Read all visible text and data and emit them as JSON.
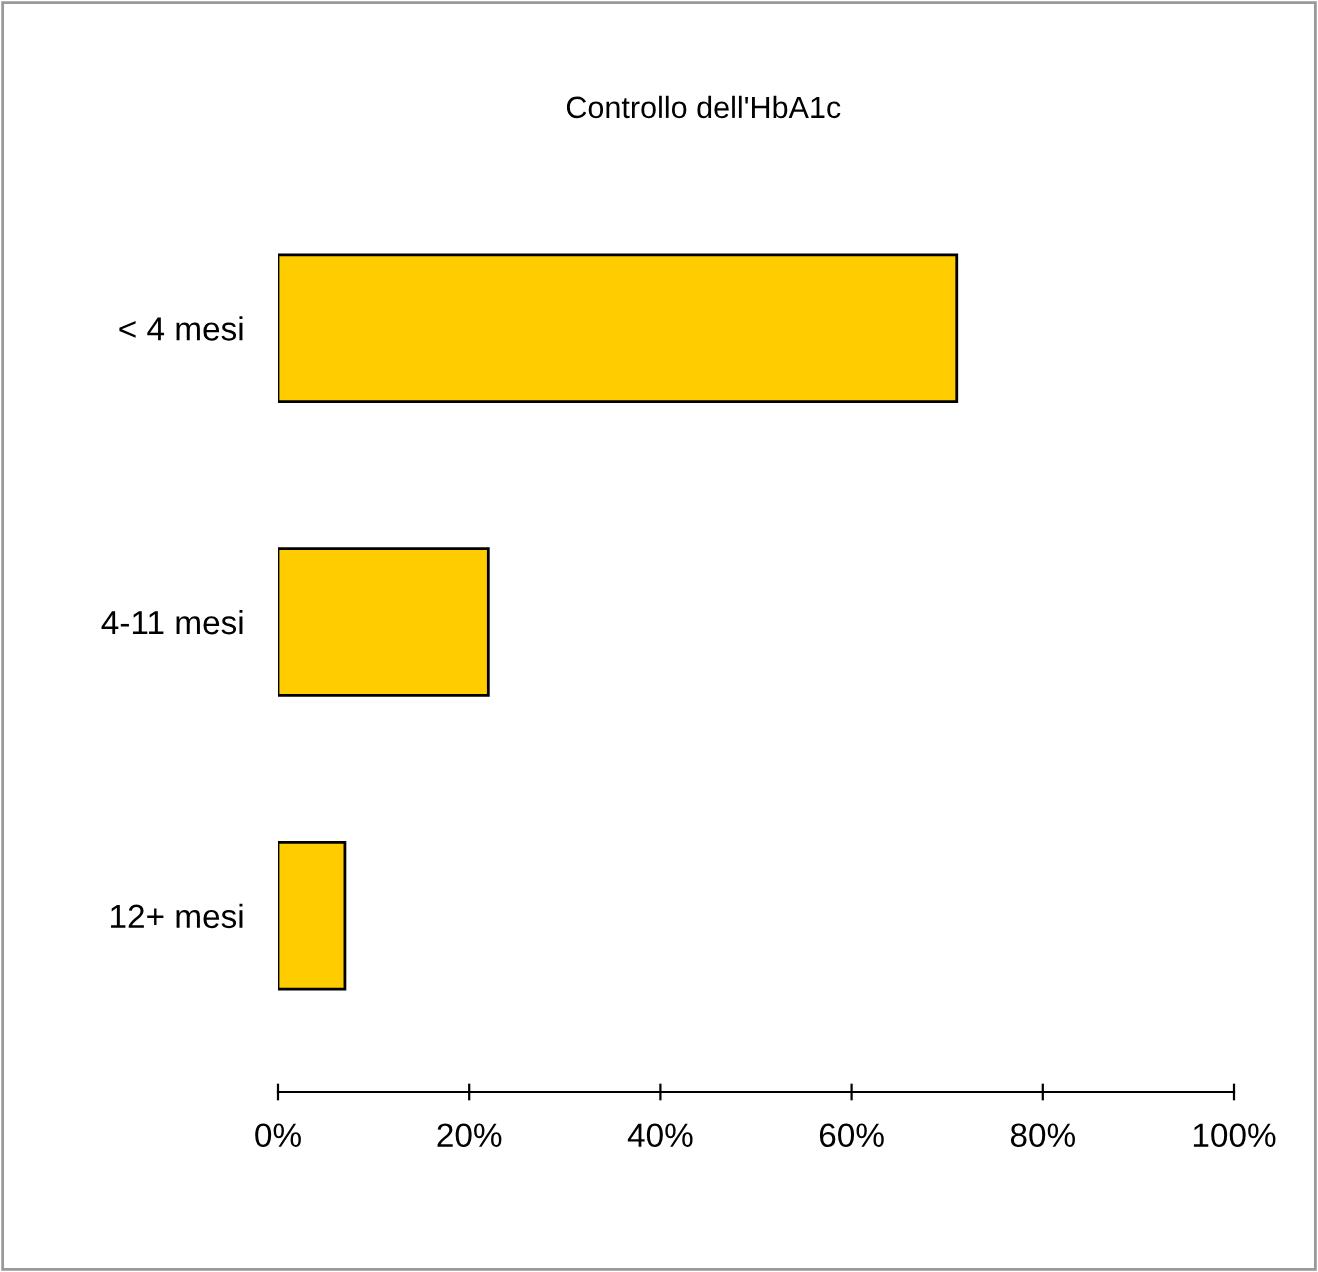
{
  "chart_data": {
    "type": "bar",
    "orientation": "horizontal",
    "title": "Controllo dell'HbA1c",
    "categories": [
      "< 4 mesi",
      "4-11 mesi",
      "12+ mesi"
    ],
    "values": [
      71,
      22,
      7
    ],
    "color": "#ffcc00",
    "xlim": [
      0,
      100
    ],
    "xticks": [
      {
        "value": 0,
        "label": "0%"
      },
      {
        "value": 20,
        "label": "20%"
      },
      {
        "value": 40,
        "label": "40%"
      },
      {
        "value": 60,
        "label": "60%"
      },
      {
        "value": 80,
        "label": "80%"
      },
      {
        "value": 100,
        "label": "100%"
      }
    ],
    "grid": false,
    "legend": false
  }
}
